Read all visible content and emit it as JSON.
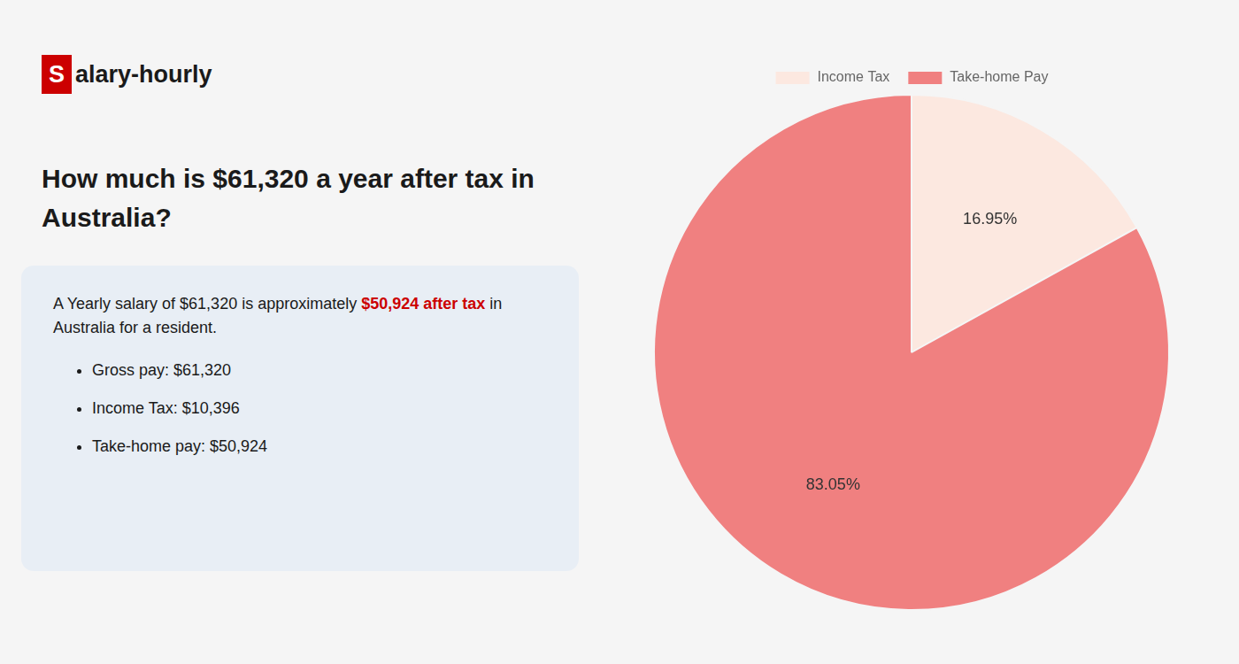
{
  "chart_data": {
    "type": "pie",
    "title": [
      "How much is $61,320 a year after tax in",
      "Australia?"
    ],
    "annotations": [
      "S",
      "alary-hourly",
      "A Yearly salary of $61,320 is approximately ",
      "$50,924 after tax",
      " in",
      "Australia for a resident.",
      "Gross pay: $61,320",
      "Income Tax: $10,396",
      "Take-home pay: $50,924"
    ],
    "categories": [
      "Income Tax",
      "Take-home Pay"
    ],
    "values": [
      16.95,
      83.05
    ],
    "value_labels": [
      "16.95%",
      "83.05%"
    ],
    "colors": [
      "#fce8e0",
      "#f08080"
    ],
    "data_labels": true,
    "legend": "top"
  }
}
